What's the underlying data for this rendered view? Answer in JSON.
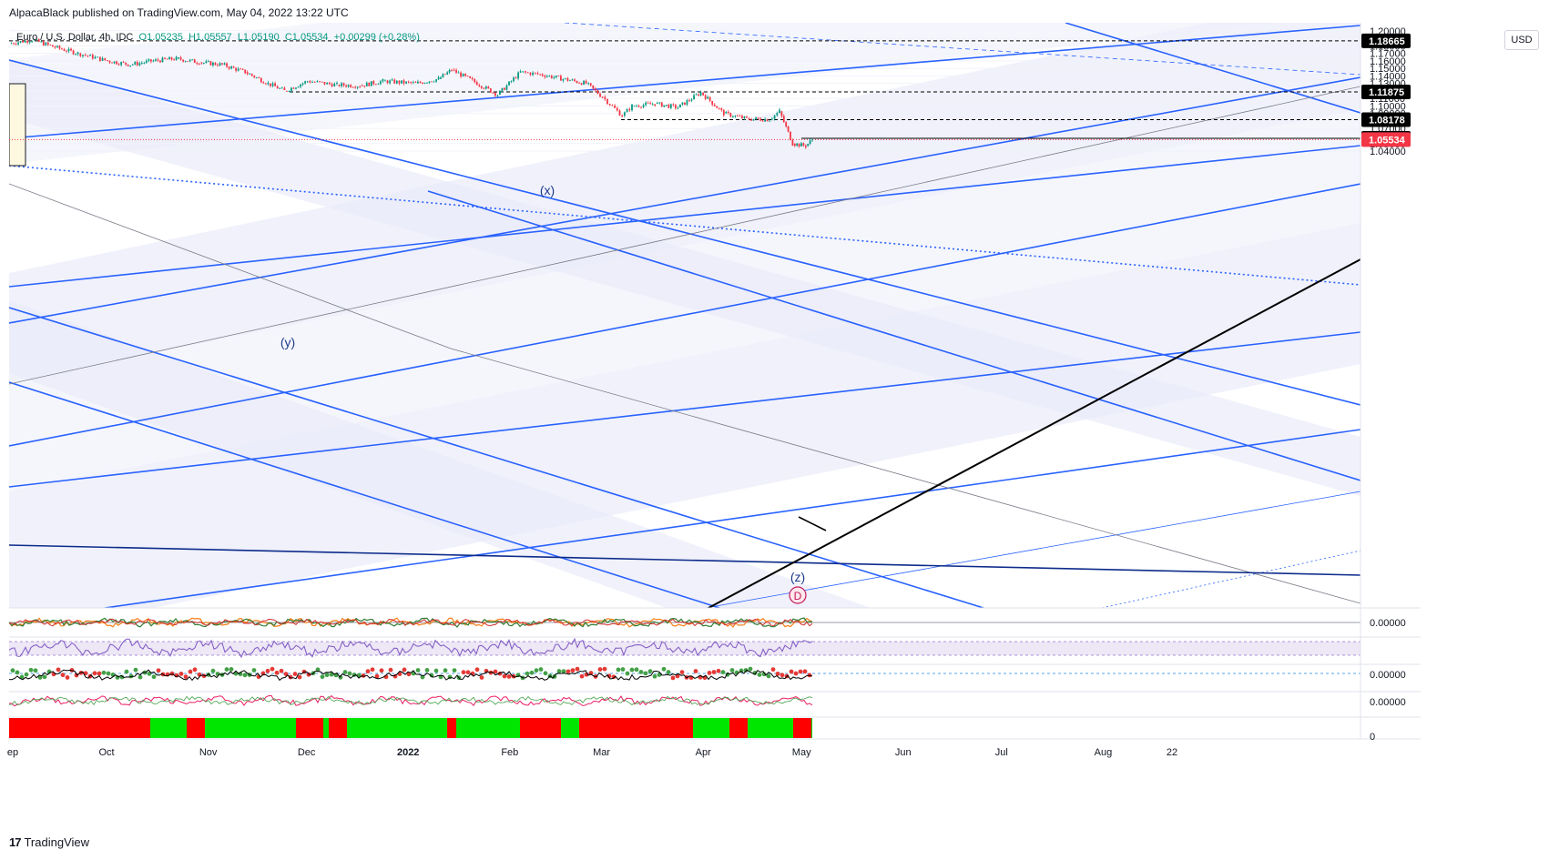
{
  "header": {
    "publish_line": "AlpacaBlack published on TradingView.com, May 04, 2022 13:22 UTC"
  },
  "legend": {
    "symbol": "Euro / U.S. Dollar, 4h, IDC",
    "open": "O1.05235",
    "high": "H1.05557",
    "low": "L1.05190",
    "close": "C1.05534",
    "change": "+0.00299 (+0.28%)"
  },
  "currency": "USD",
  "brand": "TradingView",
  "colors": {
    "up": "#089981",
    "down": "#f23645",
    "channel": "#2962ff",
    "dark_trend": "#0d2b8a",
    "axis_text": "#131722"
  },
  "wave_labels": [
    "(x)",
    "(y)",
    "(z)",
    "D"
  ],
  "chart_data": {
    "type": "line",
    "series": [
      {
        "x": [
          "2021-09-01",
          "2021-09-08",
          "2021-09-15",
          "2021-09-22",
          "2021-10-01",
          "2021-10-08",
          "2021-10-15",
          "2021-10-22",
          "2021-10-29",
          "2021-11-05",
          "2021-11-12",
          "2021-11-19",
          "2021-11-24",
          "2021-12-01",
          "2021-12-10",
          "2021-12-17",
          "2021-12-24",
          "2022-01-03",
          "2022-01-10",
          "2022-01-14",
          "2022-01-21",
          "2022-01-28",
          "2022-02-04",
          "2022-02-10",
          "2022-02-17",
          "2022-02-24",
          "2022-03-01",
          "2022-03-07",
          "2022-03-10",
          "2022-03-17",
          "2022-03-24",
          "2022-03-31",
          "2022-04-07",
          "2022-04-14",
          "2022-04-21",
          "2022-04-24",
          "2022-04-28",
          "2022-05-02",
          "2022-05-04"
        ],
        "values": [
          1.183,
          1.188,
          1.178,
          1.17,
          1.16,
          1.155,
          1.16,
          1.163,
          1.158,
          1.155,
          1.145,
          1.13,
          1.12,
          1.133,
          1.128,
          1.127,
          1.133,
          1.13,
          1.136,
          1.148,
          1.132,
          1.115,
          1.145,
          1.142,
          1.136,
          1.13,
          1.112,
          1.087,
          1.1,
          1.103,
          1.098,
          1.118,
          1.09,
          1.083,
          1.082,
          1.093,
          1.05,
          1.047,
          1.0553
        ]
      }
    ],
    "y_axis": {
      "ylim": [
        1.0275,
        1.2075
      ],
      "ticks": [
        "1.20000",
        "1.19000",
        "1.18000",
        "1.17000",
        "1.16000",
        "1.15000",
        "1.14000",
        "1.13000",
        "1.12000",
        "1.11000",
        "1.10000",
        "1.09000",
        "1.07000",
        "1.05000",
        "1.04000"
      ]
    },
    "x_axis": {
      "tick_labels": [
        "ep",
        "Oct",
        "Nov",
        "Dec",
        "2022",
        "Feb",
        "Mar",
        "Apr",
        "May",
        "Jun",
        "Jul",
        "Aug",
        "22"
      ]
    },
    "price_levels": [
      {
        "value": "1.18665",
        "style": "dashed"
      },
      {
        "value": "1.11875",
        "style": "dashed"
      },
      {
        "value": "1.08178",
        "style": "dashed"
      },
      {
        "value": "1.05693",
        "style": "solid"
      },
      {
        "value": "1.05534",
        "style": "last-price"
      }
    ],
    "indicators": [
      {
        "value": "0.00000"
      },
      {
        "value": ""
      },
      {
        "value": "0.00000"
      },
      {
        "value": "0.00000"
      },
      {
        "value": "0"
      }
    ],
    "grid": true
  }
}
